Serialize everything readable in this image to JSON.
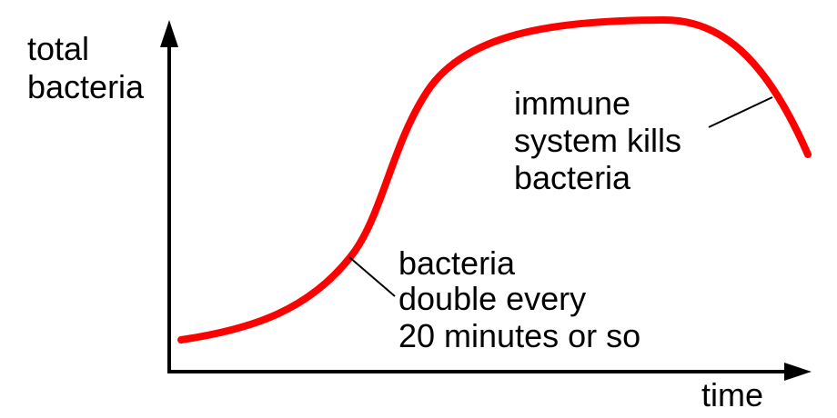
{
  "axes": {
    "y_label_lines": [
      "total",
      "bacteria"
    ],
    "x_label": "time"
  },
  "annotations": {
    "growth_lines": [
      "bacteria",
      "double every",
      "20 minutes or so"
    ],
    "decline_lines": [
      "immune",
      "system kills",
      "bacteria"
    ]
  },
  "colors": {
    "curve": "#ff0000",
    "axes": "#000000",
    "leader": "#000000",
    "background": "#ffffff"
  }
}
